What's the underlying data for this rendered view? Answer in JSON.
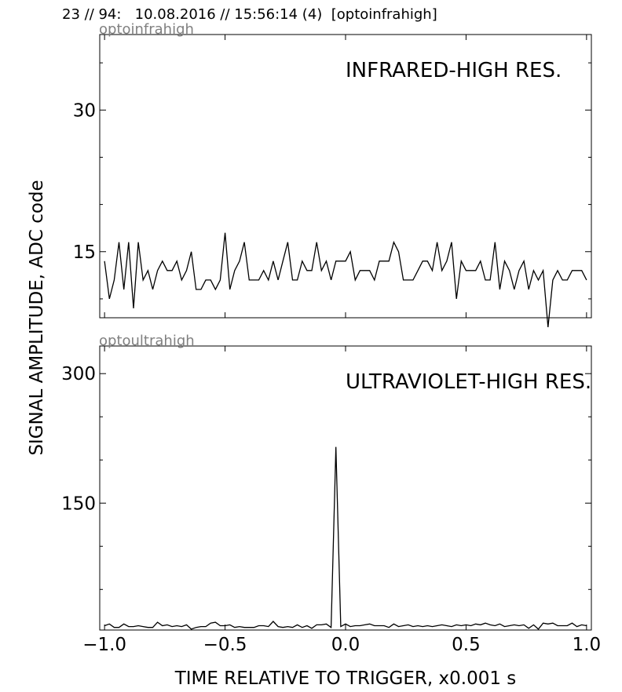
{
  "header": {
    "title": "23 // 94:   10.08.2016 // 15:56:14 (4)  [optoinfrahigh]"
  },
  "shared": {
    "xlabel": "TIME RELATIVE TO TRIGGER,   x0.001 s",
    "ylabel": "SIGNAL AMPLITUDE,  ADC code"
  },
  "chart_data": [
    {
      "type": "line",
      "channel_label": "optoinfrahigh",
      "title": "INFRARED-HIGH RES.",
      "xlim": [
        -1.02,
        1.02
      ],
      "ylim": [
        8.0,
        38.0
      ],
      "xticks": [
        -1.0,
        -0.5,
        0.0,
        0.5,
        1.0
      ],
      "xtick_labels": [
        "",
        "",
        "",
        "",
        ""
      ],
      "yticks_major": [
        15,
        30
      ],
      "ytick_labels": [
        "15",
        "30"
      ],
      "yticks_minor": [
        10,
        20,
        25,
        35
      ],
      "series": [
        {
          "color": "#000000",
          "x": [
            -1.0,
            -0.98,
            -0.96,
            -0.94,
            -0.92,
            -0.9,
            -0.88,
            -0.86,
            -0.84,
            -0.82,
            -0.8,
            -0.78,
            -0.76,
            -0.74,
            -0.72,
            -0.7,
            -0.68,
            -0.66,
            -0.64,
            -0.62,
            -0.6,
            -0.58,
            -0.56,
            -0.54,
            -0.52,
            -0.5,
            -0.48,
            -0.46,
            -0.44,
            -0.42,
            -0.4,
            -0.38,
            -0.36,
            -0.34,
            -0.32,
            -0.3,
            -0.28,
            -0.26,
            -0.24,
            -0.22,
            -0.2,
            -0.18,
            -0.16,
            -0.14,
            -0.12,
            -0.1,
            -0.08,
            -0.06,
            -0.04,
            -0.02,
            0.0,
            0.02,
            0.04,
            0.06,
            0.08,
            0.1,
            0.12,
            0.14,
            0.16,
            0.18,
            0.2,
            0.22,
            0.24,
            0.26,
            0.28,
            0.3,
            0.32,
            0.34,
            0.36,
            0.38,
            0.4,
            0.42,
            0.44,
            0.46,
            0.48,
            0.5,
            0.52,
            0.54,
            0.56,
            0.58,
            0.6,
            0.62,
            0.64,
            0.66,
            0.68,
            0.7,
            0.72,
            0.74,
            0.76,
            0.78,
            0.8,
            0.82,
            0.84,
            0.86,
            0.88,
            0.9,
            0.92,
            0.94,
            0.96,
            0.98,
            1.0
          ],
          "y": [
            14,
            10,
            12,
            16,
            11,
            16,
            9,
            16,
            12,
            13,
            11,
            13,
            14,
            13,
            13,
            14,
            12,
            13,
            15,
            11,
            11,
            12,
            12,
            11,
            12,
            17,
            11,
            13,
            14,
            16,
            12,
            12,
            12,
            13,
            12,
            14,
            12,
            14,
            16,
            12,
            12,
            14,
            13,
            13,
            16,
            13,
            14,
            12,
            14,
            14,
            14,
            15,
            12,
            13,
            13,
            13,
            12,
            14,
            14,
            14,
            16,
            15,
            12,
            12,
            12,
            13,
            14,
            14,
            13,
            16,
            13,
            14,
            16,
            10,
            14,
            13,
            13,
            13,
            14,
            12,
            12,
            16,
            11,
            14,
            13,
            11,
            13,
            14,
            11,
            13,
            12,
            13,
            7,
            12,
            13,
            12,
            12,
            13,
            13,
            13,
            12
          ]
        }
      ]
    },
    {
      "type": "line",
      "channel_label": "optoultrahigh",
      "title": "ULTRAVIOLET-HIGH RES.",
      "xlim": [
        -1.02,
        1.02
      ],
      "ylim": [
        3.0,
        332.0
      ],
      "xticks": [
        -1.0,
        -0.5,
        0.0,
        0.5,
        1.0
      ],
      "xtick_labels": [
        "−1.0",
        "−0.5",
        "0.0",
        "0.5",
        "1.0"
      ],
      "yticks_major": [
        150,
        300
      ],
      "ytick_labels": [
        "150",
        "300"
      ],
      "yticks_minor": [
        50,
        100,
        200,
        250
      ],
      "series": [
        {
          "color": "#000000",
          "x": [
            -1.0,
            -0.98,
            -0.96,
            -0.94,
            -0.92,
            -0.9,
            -0.88,
            -0.86,
            -0.84,
            -0.82,
            -0.8,
            -0.78,
            -0.76,
            -0.74,
            -0.72,
            -0.7,
            -0.68,
            -0.66,
            -0.64,
            -0.62,
            -0.6,
            -0.58,
            -0.56,
            -0.54,
            -0.52,
            -0.5,
            -0.48,
            -0.46,
            -0.44,
            -0.42,
            -0.4,
            -0.38,
            -0.36,
            -0.34,
            -0.32,
            -0.3,
            -0.28,
            -0.26,
            -0.24,
            -0.22,
            -0.2,
            -0.18,
            -0.16,
            -0.14,
            -0.12,
            -0.1,
            -0.08,
            -0.06,
            -0.04,
            -0.02,
            0.0,
            0.02,
            0.04,
            0.06,
            0.08,
            0.1,
            0.12,
            0.14,
            0.16,
            0.18,
            0.2,
            0.22,
            0.24,
            0.26,
            0.28,
            0.3,
            0.32,
            0.34,
            0.36,
            0.38,
            0.4,
            0.42,
            0.44,
            0.46,
            0.48,
            0.5,
            0.52,
            0.54,
            0.56,
            0.58,
            0.6,
            0.62,
            0.64,
            0.66,
            0.68,
            0.7,
            0.72,
            0.74,
            0.76,
            0.78,
            0.8,
            0.82,
            0.84,
            0.86,
            0.88,
            0.9,
            0.92,
            0.94,
            0.96,
            0.98,
            1.0
          ],
          "y": [
            8,
            10,
            6,
            6,
            10,
            7,
            7,
            8,
            7,
            6,
            6,
            12,
            8,
            9,
            7,
            8,
            7,
            9,
            4,
            6,
            7,
            7,
            11,
            12,
            8,
            8,
            9,
            6,
            7,
            6,
            6,
            6,
            8,
            8,
            7,
            13,
            7,
            6,
            7,
            6,
            9,
            6,
            8,
            5,
            9,
            9,
            10,
            6,
            215,
            7,
            10,
            7,
            8,
            8,
            9,
            10,
            8,
            8,
            8,
            6,
            10,
            7,
            8,
            9,
            7,
            8,
            7,
            8,
            7,
            8,
            9,
            8,
            7,
            9,
            8,
            9,
            8,
            10,
            9,
            11,
            9,
            8,
            10,
            7,
            8,
            9,
            8,
            9,
            5,
            9,
            4,
            11,
            10,
            11,
            8,
            8,
            8,
            11,
            7,
            9,
            8
          ]
        }
      ]
    }
  ]
}
